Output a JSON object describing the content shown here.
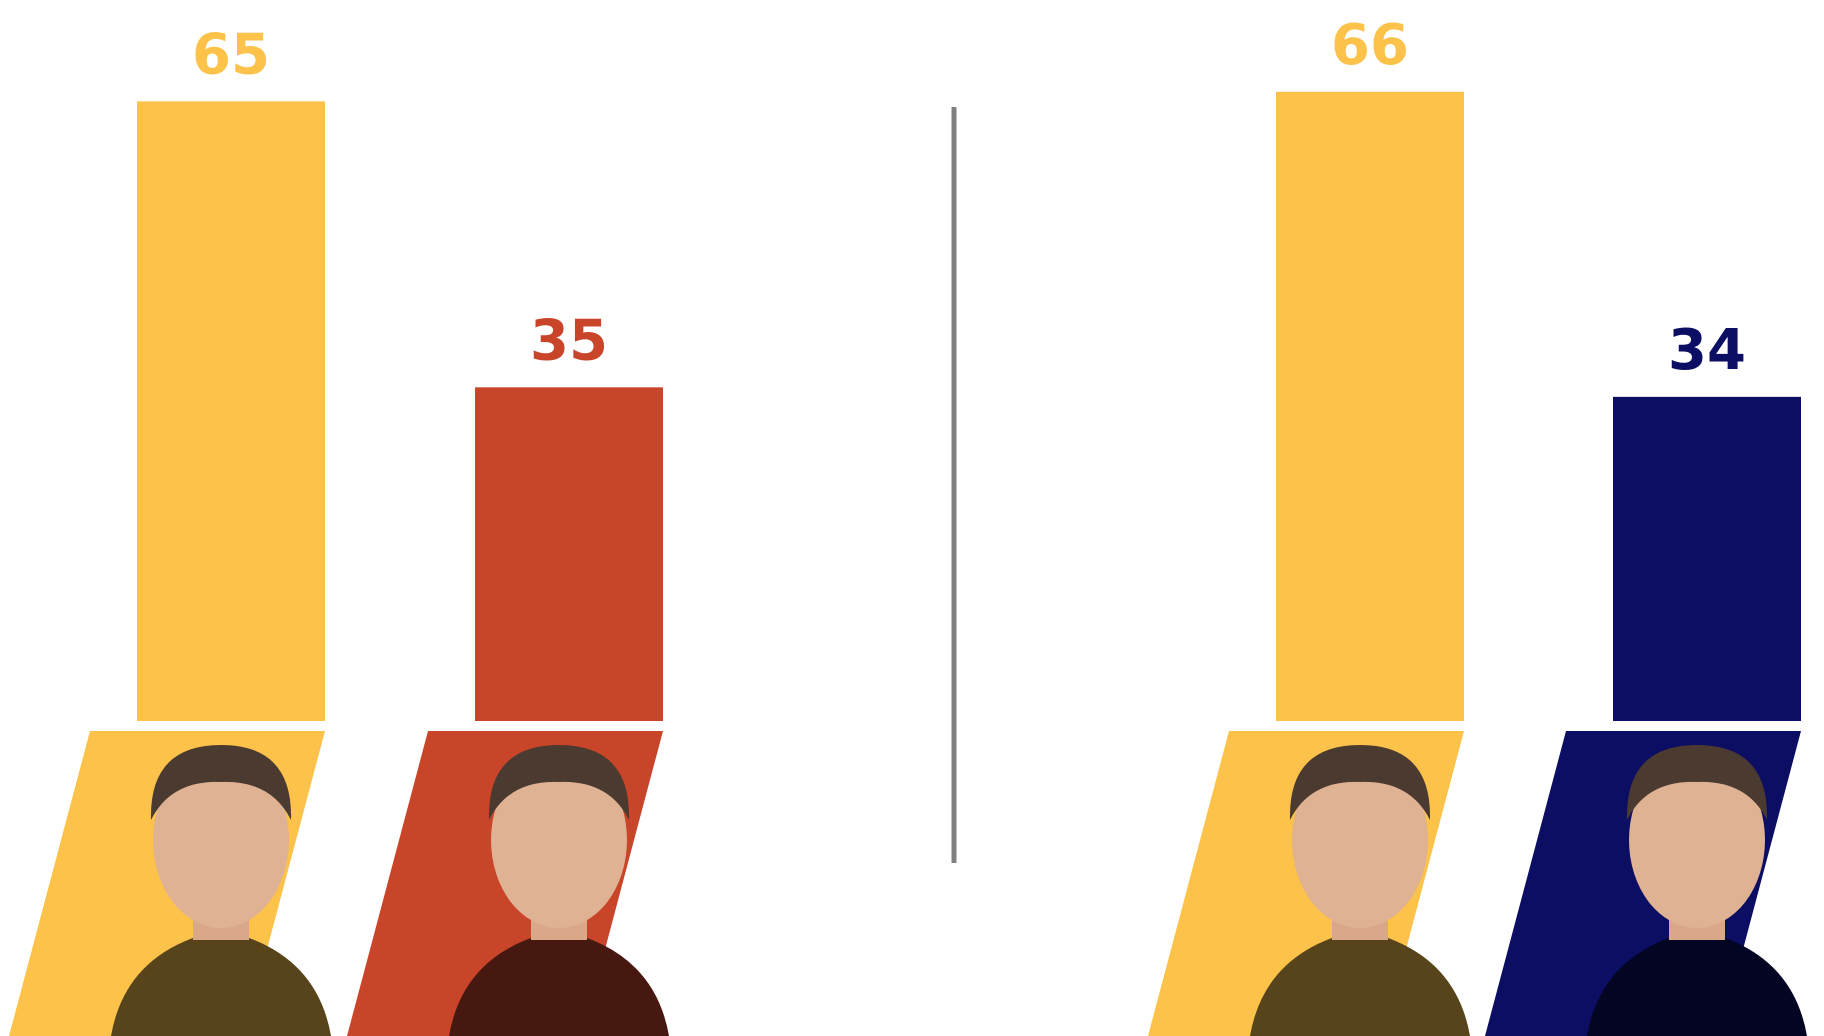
{
  "chart_data": [
    {
      "type": "bar",
      "categories": [
        null,
        null
      ],
      "values": [
        65,
        35
      ],
      "colors": [
        "#fcc24a",
        "#c8452a"
      ],
      "ylim": [
        0,
        75
      ]
    },
    {
      "type": "bar",
      "categories": [
        null,
        null
      ],
      "values": [
        66,
        34
      ],
      "colors": [
        "#fcc24a",
        "#0b0e62"
      ],
      "ylim": [
        0,
        75
      ]
    }
  ]
}
